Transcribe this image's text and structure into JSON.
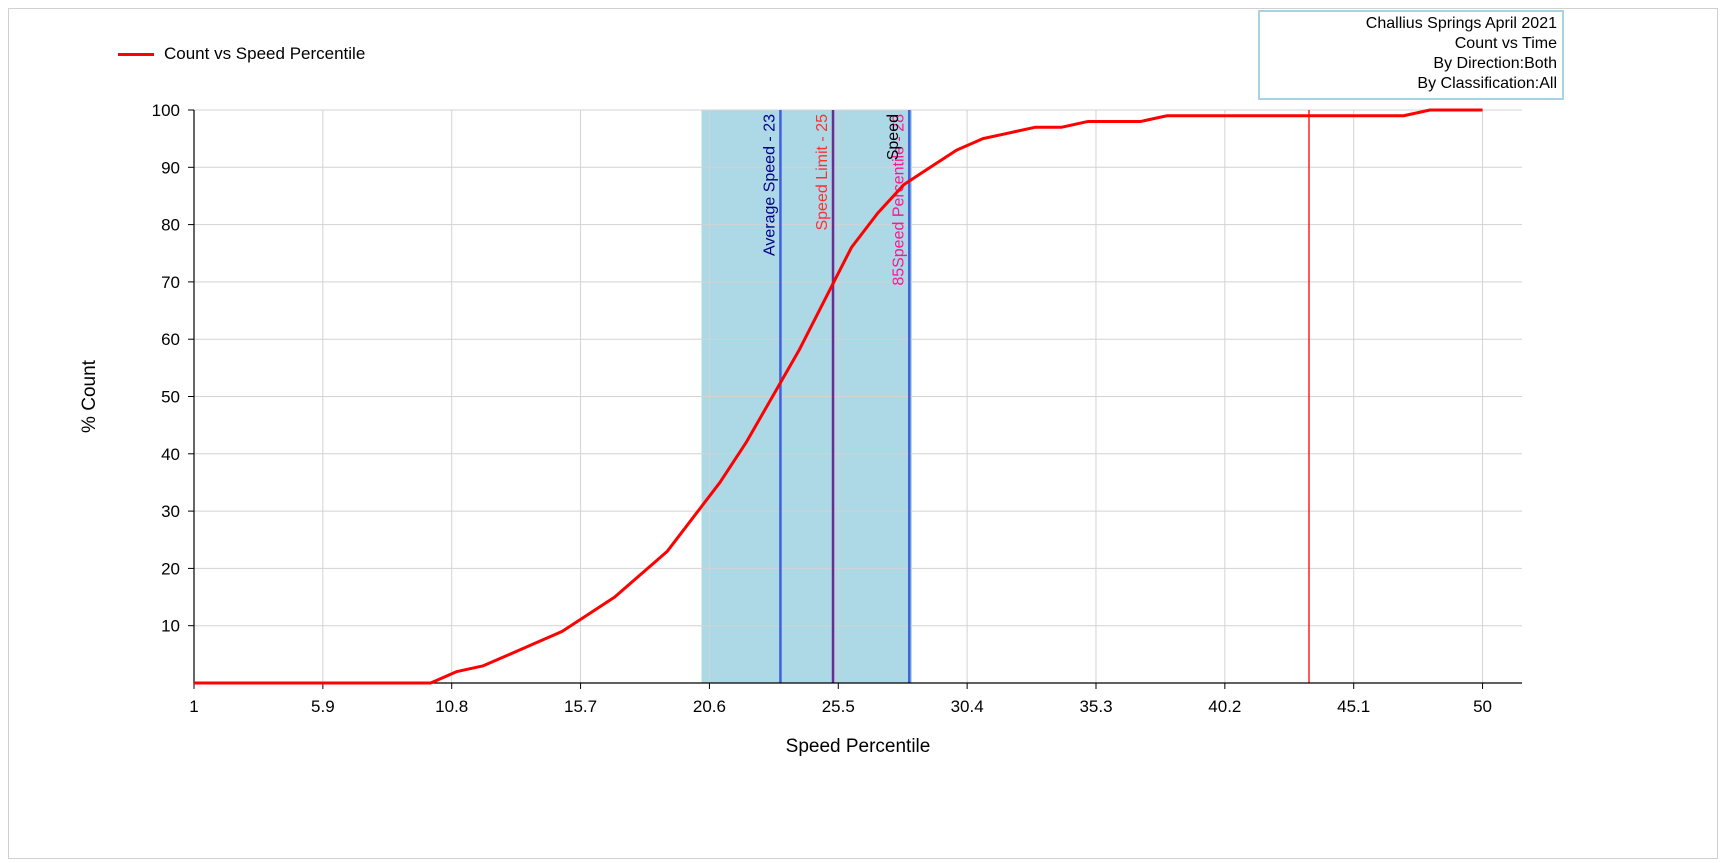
{
  "legend": {
    "label": "Count vs Speed Percentile",
    "color": "#ff0000"
  },
  "info_box": {
    "lines": [
      "Challius Springs April 2021",
      "Count vs Time",
      "By Direction:Both",
      "By Classification:All"
    ]
  },
  "chart_data": {
    "type": "line",
    "title": "",
    "xlabel": "Speed Percentile",
    "ylabel": "% Count",
    "xlim": [
      1,
      51.5
    ],
    "ylim": [
      0,
      100
    ],
    "x_ticks": [
      1,
      5.9,
      10.8,
      15.7,
      20.6,
      25.5,
      30.4,
      35.3,
      40.2,
      45.1,
      50
    ],
    "x_tick_labels": [
      "1",
      "5.9",
      "10.8",
      "15.7",
      "20.6",
      "25.5",
      "30.4",
      "35.3",
      "40.2",
      "45.1",
      "50"
    ],
    "y_ticks": [
      10,
      20,
      30,
      40,
      50,
      60,
      70,
      80,
      90,
      100
    ],
    "y_tick_labels": [
      "10",
      "20",
      "30",
      "40",
      "50",
      "60",
      "70",
      "80",
      "90",
      "100"
    ],
    "grid": true,
    "legend_position": "top-left",
    "series": [
      {
        "name": "Count vs Speed Percentile",
        "color": "#ff0000",
        "x": [
          1,
          2,
          3,
          4,
          5,
          6,
          7,
          8,
          9,
          10,
          11,
          12,
          13,
          14,
          15,
          16,
          17,
          18,
          19,
          20,
          21,
          22,
          23,
          24,
          25,
          26,
          27,
          28,
          29,
          30,
          31,
          32,
          33,
          34,
          35,
          36,
          37,
          38,
          39,
          40,
          41,
          42,
          43,
          44,
          45,
          46,
          47,
          48,
          49,
          50
        ],
        "y": [
          0,
          0,
          0,
          0,
          0,
          0,
          0,
          0,
          0,
          0,
          2,
          3,
          5,
          7,
          9,
          12,
          15,
          19,
          23,
          29,
          35,
          42,
          50,
          58,
          67,
          76,
          82,
          87,
          90,
          93,
          95,
          96,
          97,
          97,
          98,
          98,
          98,
          99,
          99,
          99,
          99,
          99,
          99,
          99,
          99,
          99,
          99,
          100,
          100,
          100
        ]
      }
    ],
    "shaded_band": {
      "x_start": 20.3,
      "x_end": 28.3,
      "color": "#add8e6"
    },
    "reference_lines": [
      {
        "x": 23.3,
        "label": "Average Speed - 23",
        "line_color": "#3f5fe0",
        "label_color": "#00008b"
      },
      {
        "x": 25.3,
        "label": "Speed Limit - 25",
        "line_color": "#6a2c91",
        "label_color": "#ff3030"
      },
      {
        "x": 28.2,
        "label": "85Speed Percentile - 28",
        "line_color": "#3f5fe0",
        "label_color": "#ff1493"
      },
      {
        "x": 28.0,
        "label": "Speed",
        "line_color": "none",
        "label_color": "#000000"
      },
      {
        "x": 43.4,
        "label": "",
        "line_color": "#ff0000",
        "label_color": "#ff0000"
      }
    ]
  }
}
